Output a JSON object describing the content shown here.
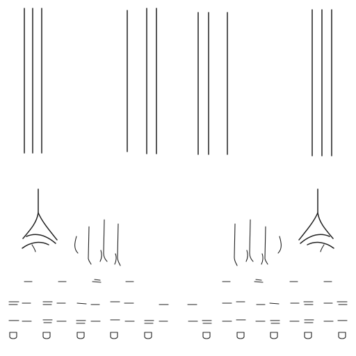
{
  "canvas": {
    "background": "#ffffff",
    "ink": "#1f1f1f"
  },
  "elements": {
    "vertical_line_groups": 4,
    "claw_hand_sketches": 2,
    "finger_sketch_groups": 2,
    "dash_rows": 4,
    "nail_glyph_count": 10
  }
}
